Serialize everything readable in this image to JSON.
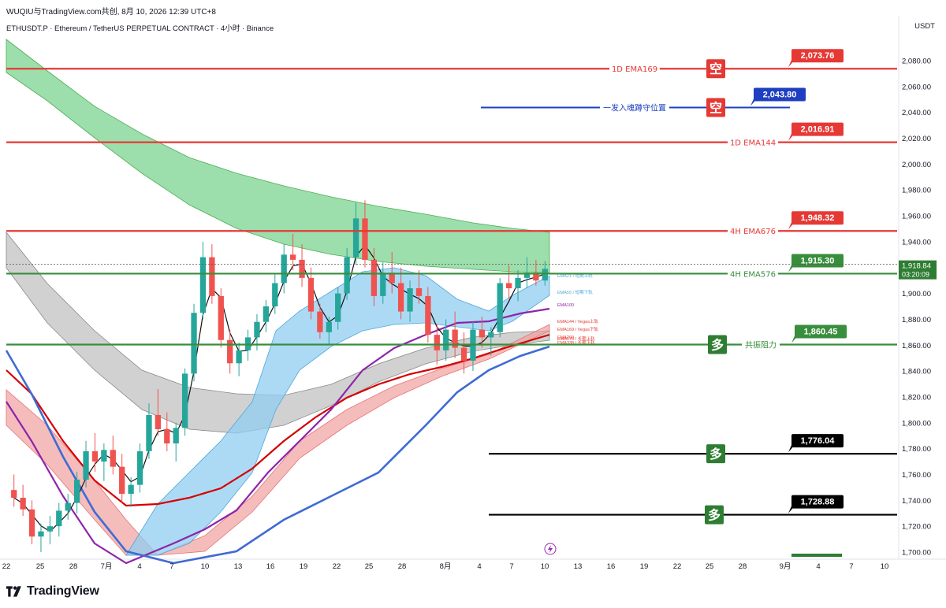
{
  "header": {
    "watermark": "WUQIU与TradingView.com共创, 8月 10, 2026 12:39 UTC+8",
    "symbol_line": "ETHUSDT.P · Ethereum / TetherUS PERPETUAL CONTRACT · 4小时 · Binance",
    "currency": "USDT"
  },
  "footer": {
    "brand": "TradingView"
  },
  "colors": {
    "red": "#e53935",
    "green": "#388e3c",
    "blue": "#1e40c0",
    "black": "#000000",
    "ema_band_green": "#7cd392",
    "ema_band_gray": "#b9b9b9",
    "ema_band_blue": "#90cdf0",
    "ema_band_red": "#f1a0a0"
  },
  "chart_data": {
    "type": "candlestick",
    "ylim": [
      1697,
      2090
    ],
    "y_ticks": [
      "2,080.00",
      "2,060.00",
      "2,040.00",
      "2,020.00",
      "2,000.00",
      "1,980.00",
      "1,960.00",
      "1,940.00",
      "1,920.00",
      "1,900.00",
      "1,880.00",
      "1,860.00",
      "1,840.00",
      "1,820.00",
      "1,800.00",
      "1,780.00",
      "1,760.00",
      "1,740.00",
      "1,720.00",
      "1,700.00"
    ],
    "y_tick_values": [
      2080,
      2060,
      2040,
      2020,
      2000,
      1980,
      1960,
      1940,
      1920,
      1900,
      1880,
      1860,
      1840,
      1820,
      1800,
      1780,
      1760,
      1740,
      1720,
      1700
    ],
    "x_labels": [
      "22",
      "25",
      "28",
      "7月",
      "4",
      "7",
      "10",
      "13",
      "16",
      "19",
      "22",
      "25",
      "28",
      "8月",
      "4",
      "7",
      "10",
      "13",
      "16",
      "19",
      "22",
      "25",
      "28",
      "9月",
      "4",
      "7",
      "10"
    ],
    "current_price": "1,918.84",
    "countdown": "03:20:09",
    "levels": [
      {
        "label": "1D EMA169",
        "value_label": "2,073.76",
        "value": 2073.76,
        "color": "red",
        "badge": "空"
      },
      {
        "label": "一发入魂蹲守位置",
        "value_label": "2,043.80",
        "value": 2043.8,
        "color": "blue",
        "badge": "空"
      },
      {
        "label": "1D EMA144",
        "value_label": "2,016.91",
        "value": 2016.91,
        "color": "red",
        "badge": ""
      },
      {
        "label": "4H EMA676",
        "value_label": "1,948.32",
        "value": 1948.32,
        "color": "red",
        "badge": ""
      },
      {
        "label": "4H EMA576",
        "value_label": "1,915.30",
        "value": 1915.3,
        "color": "green",
        "badge": ""
      },
      {
        "label": "共振阻力",
        "value_label": "1,860.45",
        "value": 1860.45,
        "color": "green",
        "badge": "多"
      },
      {
        "label": "",
        "value_label": "1,776.04",
        "value": 1776.04,
        "color": "black",
        "badge": "多"
      },
      {
        "label": "",
        "value_label": "1,728.88",
        "value": 1728.88,
        "color": "black",
        "badge": "多"
      }
    ],
    "ema_labels": [
      "EMA21 / 短期上轨",
      "EMA55 / 短期下轨",
      "EMA100",
      "EMA144 / Vegas上轨",
      "EMA169 / Vegas下轨",
      "EMA200",
      "EMA338 / 长期下轨",
      "EMA576 / 长期上轨"
    ],
    "candles": [
      [
        1748,
        1760,
        1735,
        1742
      ],
      [
        1742,
        1752,
        1728,
        1733
      ],
      [
        1733,
        1740,
        1706,
        1712
      ],
      [
        1712,
        1722,
        1700,
        1716
      ],
      [
        1716,
        1728,
        1706,
        1720
      ],
      [
        1720,
        1738,
        1712,
        1732
      ],
      [
        1732,
        1745,
        1725,
        1738
      ],
      [
        1738,
        1762,
        1730,
        1756
      ],
      [
        1756,
        1786,
        1750,
        1778
      ],
      [
        1778,
        1792,
        1762,
        1770
      ],
      [
        1770,
        1784,
        1755,
        1779
      ],
      [
        1779,
        1790,
        1760,
        1766
      ],
      [
        1766,
        1776,
        1738,
        1745
      ],
      [
        1745,
        1758,
        1735,
        1752
      ],
      [
        1752,
        1784,
        1746,
        1778
      ],
      [
        1778,
        1815,
        1772,
        1806
      ],
      [
        1806,
        1826,
        1790,
        1795
      ],
      [
        1795,
        1808,
        1778,
        1784
      ],
      [
        1784,
        1800,
        1770,
        1796
      ],
      [
        1796,
        1842,
        1790,
        1838
      ],
      [
        1838,
        1892,
        1832,
        1885
      ],
      [
        1885,
        1940,
        1880,
        1928
      ],
      [
        1928,
        1938,
        1892,
        1898
      ],
      [
        1898,
        1904,
        1858,
        1864
      ],
      [
        1864,
        1872,
        1838,
        1846
      ],
      [
        1846,
        1862,
        1836,
        1856
      ],
      [
        1856,
        1872,
        1848,
        1866
      ],
      [
        1866,
        1884,
        1856,
        1878
      ],
      [
        1878,
        1895,
        1870,
        1890
      ],
      [
        1890,
        1915,
        1884,
        1908
      ],
      [
        1908,
        1938,
        1900,
        1930
      ],
      [
        1930,
        1946,
        1918,
        1926
      ],
      [
        1926,
        1938,
        1905,
        1912
      ],
      [
        1912,
        1920,
        1880,
        1886
      ],
      [
        1886,
        1892,
        1865,
        1870
      ],
      [
        1870,
        1882,
        1860,
        1878
      ],
      [
        1878,
        1905,
        1872,
        1900
      ],
      [
        1900,
        1935,
        1895,
        1928
      ],
      [
        1928,
        1970,
        1922,
        1958
      ],
      [
        1958,
        1972,
        1920,
        1926
      ],
      [
        1926,
        1935,
        1890,
        1898
      ],
      [
        1898,
        1924,
        1892,
        1916
      ],
      [
        1916,
        1932,
        1900,
        1908
      ],
      [
        1908,
        1920,
        1880,
        1886
      ],
      [
        1886,
        1910,
        1878,
        1904
      ],
      [
        1904,
        1918,
        1892,
        1898
      ],
      [
        1898,
        1905,
        1862,
        1868
      ],
      [
        1868,
        1876,
        1845,
        1856
      ],
      [
        1856,
        1880,
        1848,
        1872
      ],
      [
        1872,
        1886,
        1850,
        1858
      ],
      [
        1858,
        1870,
        1838,
        1848
      ],
      [
        1848,
        1878,
        1840,
        1872
      ],
      [
        1872,
        1882,
        1858,
        1866
      ],
      [
        1866,
        1874,
        1852,
        1870
      ],
      [
        1870,
        1912,
        1866,
        1908
      ],
      [
        1908,
        1922,
        1896,
        1904
      ],
      [
        1904,
        1918,
        1894,
        1912
      ],
      [
        1912,
        1928,
        1904,
        1916
      ],
      [
        1916,
        1926,
        1906,
        1910
      ],
      [
        1910,
        1925,
        1906,
        1919
      ]
    ]
  }
}
